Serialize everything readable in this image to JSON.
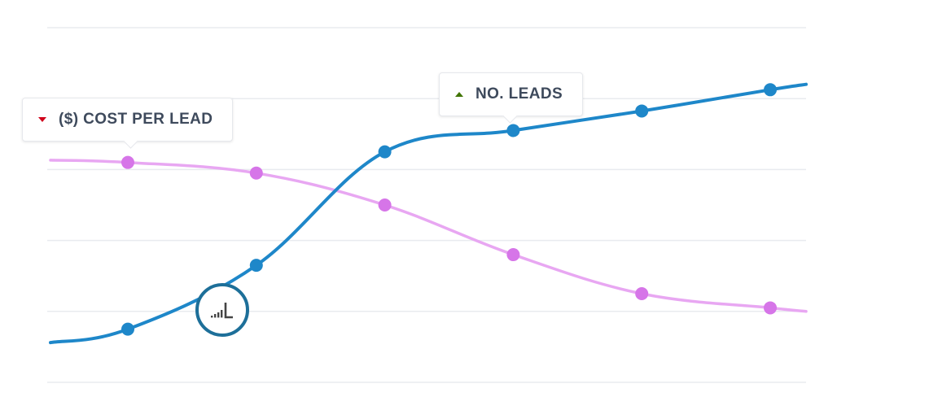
{
  "chart_data": {
    "type": "line",
    "x": [
      1,
      2,
      3,
      4,
      5,
      6
    ],
    "series": [
      {
        "key": "cost",
        "name": "($) COST PER LEAD",
        "color": "#e8a7f2",
        "marker_color": "#d675e8",
        "trend": "down",
        "trend_color": "#d0021b",
        "values": [
          62.0,
          59.0,
          50.0,
          36.0,
          25.0,
          21.0
        ]
      },
      {
        "key": "leads",
        "name": "NO. LEADS",
        "color": "#1e87c9",
        "marker_color": "#1e87c9",
        "trend": "up",
        "trend_color": "#417505",
        "values": [
          15.0,
          33.0,
          65.0,
          71.0,
          76.5,
          82.5
        ]
      }
    ],
    "ylim": [
      0,
      100
    ],
    "grid": true,
    "legend": "callouts"
  },
  "badge": {
    "icon": "signal-bars-icon"
  },
  "colors": {
    "grid": "#e9ebef",
    "badge_border": "#1d6f99",
    "badge_icon": "#444444"
  }
}
